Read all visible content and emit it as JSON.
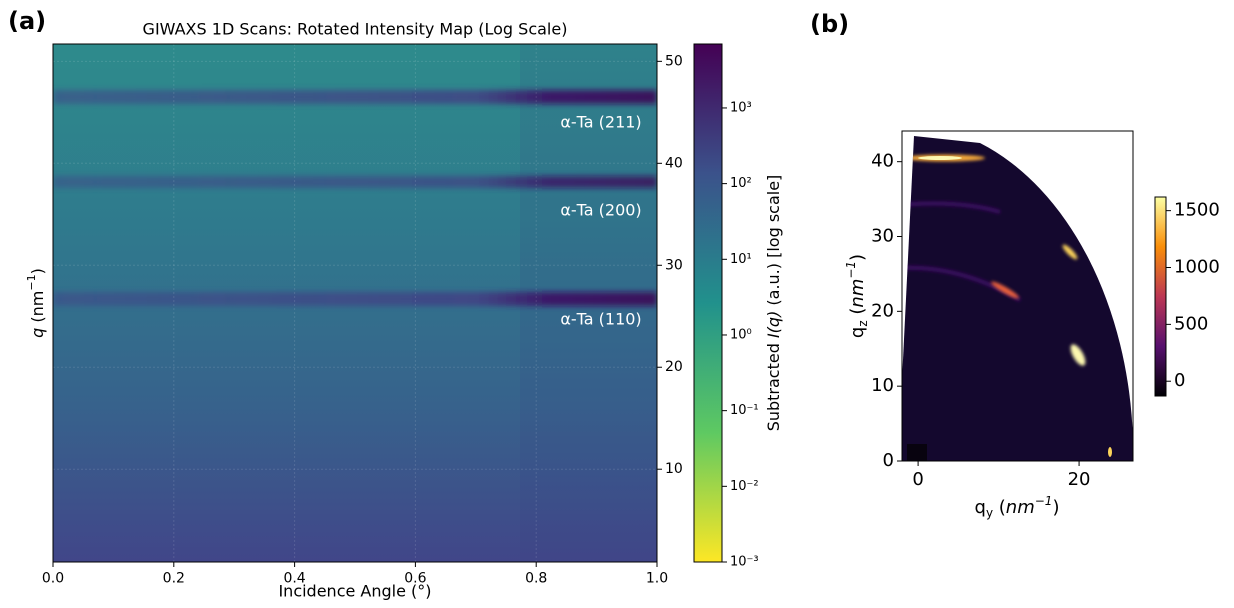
{
  "chart_data": [
    {
      "type": "heatmap",
      "panel_label": "(a)",
      "title": "GIWAXS 1D Scans: Rotated Intensity Map (Log Scale)",
      "xlabel": "Incidence Angle (°)",
      "ylabel": [
        "q",
        " (nm",
        "−1",
        ")"
      ],
      "xlim": [
        0,
        1
      ],
      "xticks": [
        {
          "value": 0,
          "label": "0.0"
        },
        0.2,
        0.4,
        0.6,
        0.8,
        {
          "value": 1,
          "label": "1.0"
        }
      ],
      "ylim": [
        0.9,
        51.7
      ],
      "yticks": [
        10,
        20,
        30,
        40,
        50
      ],
      "y_axis_side": "right",
      "grid": true,
      "annotations": [
        "α-Ta (211)",
        "α-Ta (200)",
        "α-Ta (110)"
      ],
      "colorbar": {
        "label": [
          "Subtracted ",
          "I(q)",
          " (a.u.) [log scale]"
        ],
        "scale": "log",
        "colormap": "viridis_r",
        "clim": [
          0.001,
          7000
        ],
        "ticks": [
          {
            "value": 0.001,
            "label": "10⁻³"
          },
          {
            "value": 0.01,
            "label": "10⁻²"
          },
          {
            "value": 0.1,
            "label": "10⁻¹"
          },
          {
            "value": 1,
            "label": "10⁰"
          },
          {
            "value": 10,
            "label": "10¹"
          },
          {
            "value": 100,
            "label": "10²"
          },
          {
            "value": 1000,
            "label": "10³"
          }
        ]
      }
    },
    {
      "type": "image",
      "panel_label": "(b)",
      "xlabel": [
        "q",
        "y",
        " (",
        "nm",
        "−1",
        ")"
      ],
      "ylabel": [
        "q",
        "z",
        " (",
        "nm",
        "−1",
        ")"
      ],
      "xlim": [
        -2,
        26.7
      ],
      "xticks": [
        0,
        20
      ],
      "ylim": [
        0,
        44.1
      ],
      "yticks": [
        0,
        10,
        20,
        30,
        40
      ],
      "y_axis_side": "left",
      "grid": false,
      "colorbar": {
        "scale": "linear",
        "colormap": "inferno",
        "clim": [
          -130,
          1620
        ],
        "ticks": [
          0,
          500,
          1000,
          1500
        ]
      }
    }
  ]
}
